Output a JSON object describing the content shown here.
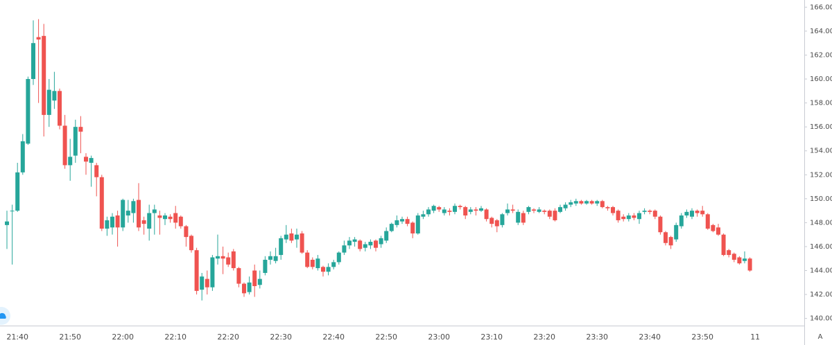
{
  "chart_data": {
    "type": "candlestick",
    "categories": [
      null,
      null,
      "21:40",
      null,
      null,
      null,
      null,
      null,
      null,
      null,
      null,
      null,
      "21:50",
      null,
      null,
      null,
      null,
      null,
      null,
      null,
      null,
      null,
      "22:00",
      null,
      null,
      null,
      null,
      null,
      null,
      null,
      null,
      null,
      "22:10",
      null,
      null,
      null,
      null,
      null,
      null,
      null,
      null,
      null,
      "22:20",
      null,
      null,
      null,
      null,
      null,
      null,
      null,
      null,
      null,
      "22:30",
      null,
      null,
      null,
      null,
      null,
      null,
      null,
      null,
      null,
      "22:40",
      null,
      null,
      null,
      null,
      null,
      null,
      null,
      null,
      null,
      "22:50",
      null,
      null,
      null,
      null,
      null,
      null,
      null,
      null,
      null,
      "23:00",
      null,
      null,
      null,
      null,
      null,
      null,
      null,
      null,
      null,
      "23:10",
      null,
      null,
      null,
      null,
      null,
      null,
      null,
      null,
      null,
      "23:20",
      null,
      null,
      null,
      null,
      null,
      null,
      null,
      null,
      null,
      "23:30",
      null,
      null,
      null,
      null,
      null,
      null,
      null,
      null,
      null,
      "23:40",
      null,
      null,
      null,
      null,
      null,
      null,
      null,
      null,
      null,
      "23:50",
      null,
      null,
      null,
      null,
      null,
      null,
      null,
      null,
      null
    ],
    "x_end_label": "11",
    "open": [
      147.8,
      149,
      149,
      152.2,
      154.6,
      160,
      163.5,
      163.6,
      157,
      158.2,
      159,
      156.1,
      152.8,
      153.6,
      156,
      153.5,
      153,
      152.8,
      151.8,
      147.5,
      147.6,
      148.6,
      147.6,
      148.6,
      148.8,
      149.9,
      148.2,
      147.5,
      148.8,
      148.6,
      148.3,
      148.5,
      148.8,
      148.5,
      147.7,
      146.9,
      145.7,
      142.4,
      143.3,
      142.6,
      145,
      145.2,
      145.1,
      145.6,
      144.2,
      142.9,
      142.2,
      144,
      142.8,
      143.8,
      144.9,
      144.8,
      145.3,
      146.6,
      147.1,
      146.6,
      147.1,
      145.5,
      144.9,
      144.2,
      144.3,
      143.9,
      144.3,
      144.7,
      145.5,
      146.1,
      146.4,
      146.5,
      145.9,
      146.1,
      146.5,
      146.2,
      146.5,
      147.3,
      147.8,
      148.1,
      148.3,
      148,
      147.1,
      148.5,
      148.7,
      149,
      149.3,
      148.8,
      149,
      148.9,
      149.4,
      149.3,
      148.9,
      149.1,
      149,
      149.1,
      148.4,
      148.2,
      147.8,
      148.8,
      149.1,
      148,
      148.8,
      148.9,
      149.1,
      148.9,
      149,
      149,
      149,
      148.9,
      149.2,
      149.5,
      149.6,
      149.8,
      149.6,
      149.8,
      149.6,
      149.8,
      149.3,
      149.3,
      149,
      148.5,
      148.3,
      148.6,
      148.3,
      148.9,
      149,
      149,
      148.5,
      147.2,
      146.8,
      146.6,
      147.7,
      148.6,
      148.5,
      149,
      149,
      148.7,
      147.8,
      147.6,
      147,
      145.7,
      145.4,
      145.1,
      144.8,
      145
    ],
    "high": [
      149,
      149.5,
      153,
      155.4,
      160.2,
      164.9,
      165,
      164.6,
      160,
      160.6,
      159.2,
      157,
      155,
      156.6,
      156.9,
      153.8,
      153.6,
      153,
      152,
      148.5,
      148.8,
      149,
      150,
      149.9,
      150,
      151.3,
      148.5,
      149.5,
      149.5,
      149,
      148.8,
      148.7,
      149.4,
      148.6,
      147.8,
      147,
      145.9,
      143.8,
      144,
      145.3,
      147,
      146,
      145.5,
      145.8,
      144.3,
      143,
      143.5,
      144.5,
      144,
      145.2,
      145.6,
      145.9,
      146.9,
      147.8,
      147.5,
      147.5,
      147.3,
      145.7,
      145.1,
      145.3,
      144.4,
      144.6,
      144.9,
      145.6,
      146.5,
      146.8,
      146.8,
      146.6,
      146.4,
      146.6,
      146.6,
      146.9,
      147.6,
      148,
      148.6,
      148.5,
      148.5,
      148.1,
      148.8,
      149,
      149.3,
      149.5,
      149.4,
      149.3,
      149.2,
      149.6,
      149.5,
      149.4,
      149.3,
      149.3,
      149.4,
      149.2,
      148.5,
      148.3,
      148.8,
      149.6,
      149.5,
      149.1,
      149,
      149.4,
      149.2,
      149.3,
      149.1,
      149.1,
      149.2,
      149.5,
      149.7,
      149.9,
      150,
      149.9,
      149.9,
      149.9,
      149.9,
      149.9,
      149.4,
      149.4,
      149.1,
      148.7,
      148.8,
      148.8,
      149,
      149.2,
      149.1,
      149.1,
      148.6,
      147.3,
      146.9,
      148,
      148.8,
      149.1,
      149.2,
      149.1,
      149.4,
      148.8,
      147.9,
      147.9,
      147.1,
      145.8,
      145.5,
      145.2,
      145.6,
      145.1
    ],
    "low": [
      145.8,
      144.5,
      148.9,
      152,
      154.5,
      159.5,
      158,
      155.2,
      156,
      157.5,
      155.8,
      152.5,
      151.5,
      153,
      153.8,
      152,
      151,
      150.2,
      147.3,
      146.9,
      147,
      146,
      147.3,
      148,
      148,
      147.3,
      147,
      146.5,
      147,
      147,
      147.8,
      148,
      147.5,
      147.5,
      146,
      145.5,
      142,
      141.5,
      142,
      142.3,
      144.5,
      143.7,
      144.3,
      144,
      142.6,
      141.8,
      142,
      141.8,
      142.5,
      143.6,
      144.5,
      144.6,
      144.9,
      146.3,
      146.3,
      145.9,
      145.4,
      144.2,
      144.1,
      144,
      143.5,
      143.6,
      144.1,
      144.5,
      145.3,
      145.8,
      146,
      145.6,
      145.6,
      145.8,
      145.6,
      145.9,
      146.3,
      147.2,
      147.6,
      147.9,
      147.7,
      146.7,
      147,
      148.3,
      148.5,
      148.8,
      148.9,
      148.6,
      148.6,
      148.7,
      149.1,
      148.3,
      148.7,
      148.6,
      148.9,
      148.1,
      147.6,
      147.2,
      147.6,
      148.6,
      148.8,
      147.8,
      147.8,
      148.7,
      148.8,
      148.8,
      148.7,
      148.3,
      148.1,
      148.8,
      149,
      149.3,
      149.4,
      149.5,
      149.5,
      149.5,
      149.4,
      149.2,
      149,
      148.6,
      148,
      148.1,
      148.1,
      148.2,
      147.9,
      148.7,
      148.7,
      148.3,
      147,
      146.1,
      145.8,
      146.4,
      147.5,
      148.4,
      148.3,
      148.5,
      148.5,
      147.4,
      147.2,
      146.9,
      145.2,
      145.1,
      144.7,
      144.5,
      144.6,
      143.9
    ],
    "close": [
      148.1,
      149,
      152.2,
      154.8,
      160,
      163,
      163.3,
      157,
      159.1,
      159,
      156.1,
      152.8,
      153.5,
      156,
      155.6,
      153.1,
      153.4,
      151.8,
      147.5,
      148.2,
      148.5,
      147.6,
      149.9,
      149,
      149.8,
      147.6,
      147.9,
      148.8,
      149.1,
      148.4,
      148.6,
      148.3,
      148,
      147.7,
      146.8,
      145.7,
      142.3,
      143.5,
      142.6,
      145.1,
      145.2,
      145,
      144.5,
      144.2,
      142.9,
      142.1,
      143,
      142.7,
      143.3,
      144.9,
      145.2,
      145.2,
      146.7,
      147,
      146.5,
      147,
      145.5,
      144.3,
      144.3,
      145,
      143.9,
      144.3,
      144.7,
      145.5,
      146.1,
      146.5,
      146.6,
      145.8,
      146.2,
      146.4,
      145.9,
      146.7,
      147.3,
      147.9,
      148.2,
      148.3,
      147.9,
      147.1,
      148.6,
      148.7,
      149.1,
      149.4,
      149.1,
      149.1,
      148.9,
      149.4,
      149.3,
      148.6,
      149.1,
      149,
      149.2,
      148.3,
      147.9,
      147.7,
      148.7,
      149.1,
      149,
      148.9,
      148,
      149.3,
      149,
      149.1,
      148.9,
      148.5,
      148.2,
      149.3,
      149.5,
      149.7,
      149.8,
      149.6,
      149.8,
      149.6,
      149.8,
      149.3,
      149.2,
      148.8,
      148.2,
      148.3,
      148.6,
      148.4,
      148.8,
      149,
      148.9,
      148.5,
      147.2,
      146.3,
      146.1,
      147.8,
      148.6,
      148.9,
      149,
      148.8,
      148.7,
      147.5,
      147.3,
      147,
      145.3,
      145.3,
      144.9,
      144.6,
      145,
      144
    ],
    "up_color": "#26a69a",
    "down_color": "#ef5350",
    "ylim": [
      139.4,
      166.6
    ],
    "yticks": [
      {
        "value": 140,
        "label": "140.00"
      },
      {
        "value": 142,
        "label": "142.00"
      },
      {
        "value": 144,
        "label": "144.00"
      },
      {
        "value": 146,
        "label": "146.00"
      },
      {
        "value": 148,
        "label": "148.00"
      },
      {
        "value": 150,
        "label": "150.00"
      },
      {
        "value": 152,
        "label": "152.00"
      },
      {
        "value": 154,
        "label": "154.00"
      },
      {
        "value": 156,
        "label": "156.00"
      },
      {
        "value": 158,
        "label": "158.00"
      },
      {
        "value": 160,
        "label": "160.00"
      },
      {
        "value": 162,
        "label": "162.00"
      },
      {
        "value": 164,
        "label": "164.00"
      },
      {
        "value": 166,
        "label": "166.00"
      }
    ],
    "grid": false,
    "scale_button": "A"
  }
}
